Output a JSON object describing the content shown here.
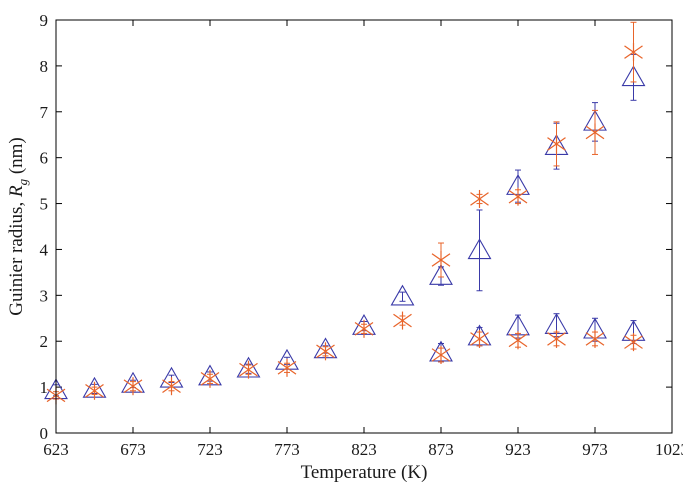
{
  "chart_data": {
    "type": "scatter",
    "xlabel": "Temperature (K)",
    "ylabel_main": "Guinier radius, ",
    "ylabel_symbol": "R",
    "ylabel_subscript": "g",
    "ylabel_unit": " (nm)",
    "xlim": [
      623,
      1023
    ],
    "ylim": [
      0,
      9
    ],
    "xticks": [
      623,
      673,
      723,
      773,
      823,
      873,
      923,
      973,
      1023
    ],
    "yticks": [
      0,
      1,
      2,
      3,
      4,
      5,
      6,
      7,
      8,
      9
    ],
    "grid": false,
    "legend": "none",
    "series": [
      {
        "marker": "triangle",
        "color": "#3a3aa8",
        "points": [
          {
            "x": 623,
            "y": 0.93,
            "err": 0.12
          },
          {
            "x": 648,
            "y": 0.96,
            "err": 0.1
          },
          {
            "x": 673,
            "y": 1.07,
            "err": 0.08
          },
          {
            "x": 698,
            "y": 1.18,
            "err": 0.08
          },
          {
            "x": 723,
            "y": 1.23,
            "err": 0.1
          },
          {
            "x": 748,
            "y": 1.4,
            "err": 0.1
          },
          {
            "x": 773,
            "y": 1.57,
            "err": 0.08
          },
          {
            "x": 798,
            "y": 1.82,
            "err": 0.08
          },
          {
            "x": 823,
            "y": 2.33,
            "err": 0.1
          },
          {
            "x": 848,
            "y": 2.97,
            "err": 0.1
          },
          {
            "x": 873,
            "y": 3.42,
            "err": 0.2
          },
          {
            "x": 898,
            "y": 3.98,
            "err": 0.88
          },
          {
            "x": 923,
            "y": 5.38,
            "err": 0.35
          },
          {
            "x": 948,
            "y": 6.25,
            "err": 0.5
          },
          {
            "x": 973,
            "y": 6.78,
            "err": 0.42
          },
          {
            "x": 998,
            "y": 7.75,
            "err": 0.5
          },
          {
            "x": 873,
            "y": 1.75,
            "err": 0.2
          },
          {
            "x": 898,
            "y": 2.1,
            "err": 0.2
          },
          {
            "x": 923,
            "y": 2.32,
            "err": 0.25
          },
          {
            "x": 948,
            "y": 2.35,
            "err": 0.25
          },
          {
            "x": 973,
            "y": 2.25,
            "err": 0.25
          },
          {
            "x": 998,
            "y": 2.2,
            "err": 0.25
          }
        ]
      },
      {
        "marker": "asterisk",
        "color": "#e8642a",
        "points": [
          {
            "x": 623,
            "y": 0.82,
            "err": 0.08
          },
          {
            "x": 648,
            "y": 0.92,
            "err": 0.08
          },
          {
            "x": 673,
            "y": 1.02,
            "err": 0.1
          },
          {
            "x": 698,
            "y": 1.02,
            "err": 0.1
          },
          {
            "x": 723,
            "y": 1.18,
            "err": 0.1
          },
          {
            "x": 748,
            "y": 1.38,
            "err": 0.1
          },
          {
            "x": 773,
            "y": 1.42,
            "err": 0.1
          },
          {
            "x": 798,
            "y": 1.78,
            "err": 0.1
          },
          {
            "x": 823,
            "y": 2.27,
            "err": 0.1
          },
          {
            "x": 848,
            "y": 2.45,
            "err": 0.1
          },
          {
            "x": 873,
            "y": 3.77,
            "err": 0.37
          },
          {
            "x": 898,
            "y": 5.1,
            "err": 0.1
          },
          {
            "x": 923,
            "y": 5.15,
            "err": 0.15
          },
          {
            "x": 948,
            "y": 6.3,
            "err": 0.48
          },
          {
            "x": 973,
            "y": 6.55,
            "err": 0.48
          },
          {
            "x": 998,
            "y": 8.3,
            "err": 0.65
          },
          {
            "x": 873,
            "y": 1.7,
            "err": 0.15
          },
          {
            "x": 898,
            "y": 2.05,
            "err": 0.15
          },
          {
            "x": 923,
            "y": 2.02,
            "err": 0.15
          },
          {
            "x": 948,
            "y": 2.05,
            "err": 0.15
          },
          {
            "x": 973,
            "y": 2.05,
            "err": 0.15
          },
          {
            "x": 998,
            "y": 1.98,
            "err": 0.15
          }
        ]
      }
    ]
  }
}
